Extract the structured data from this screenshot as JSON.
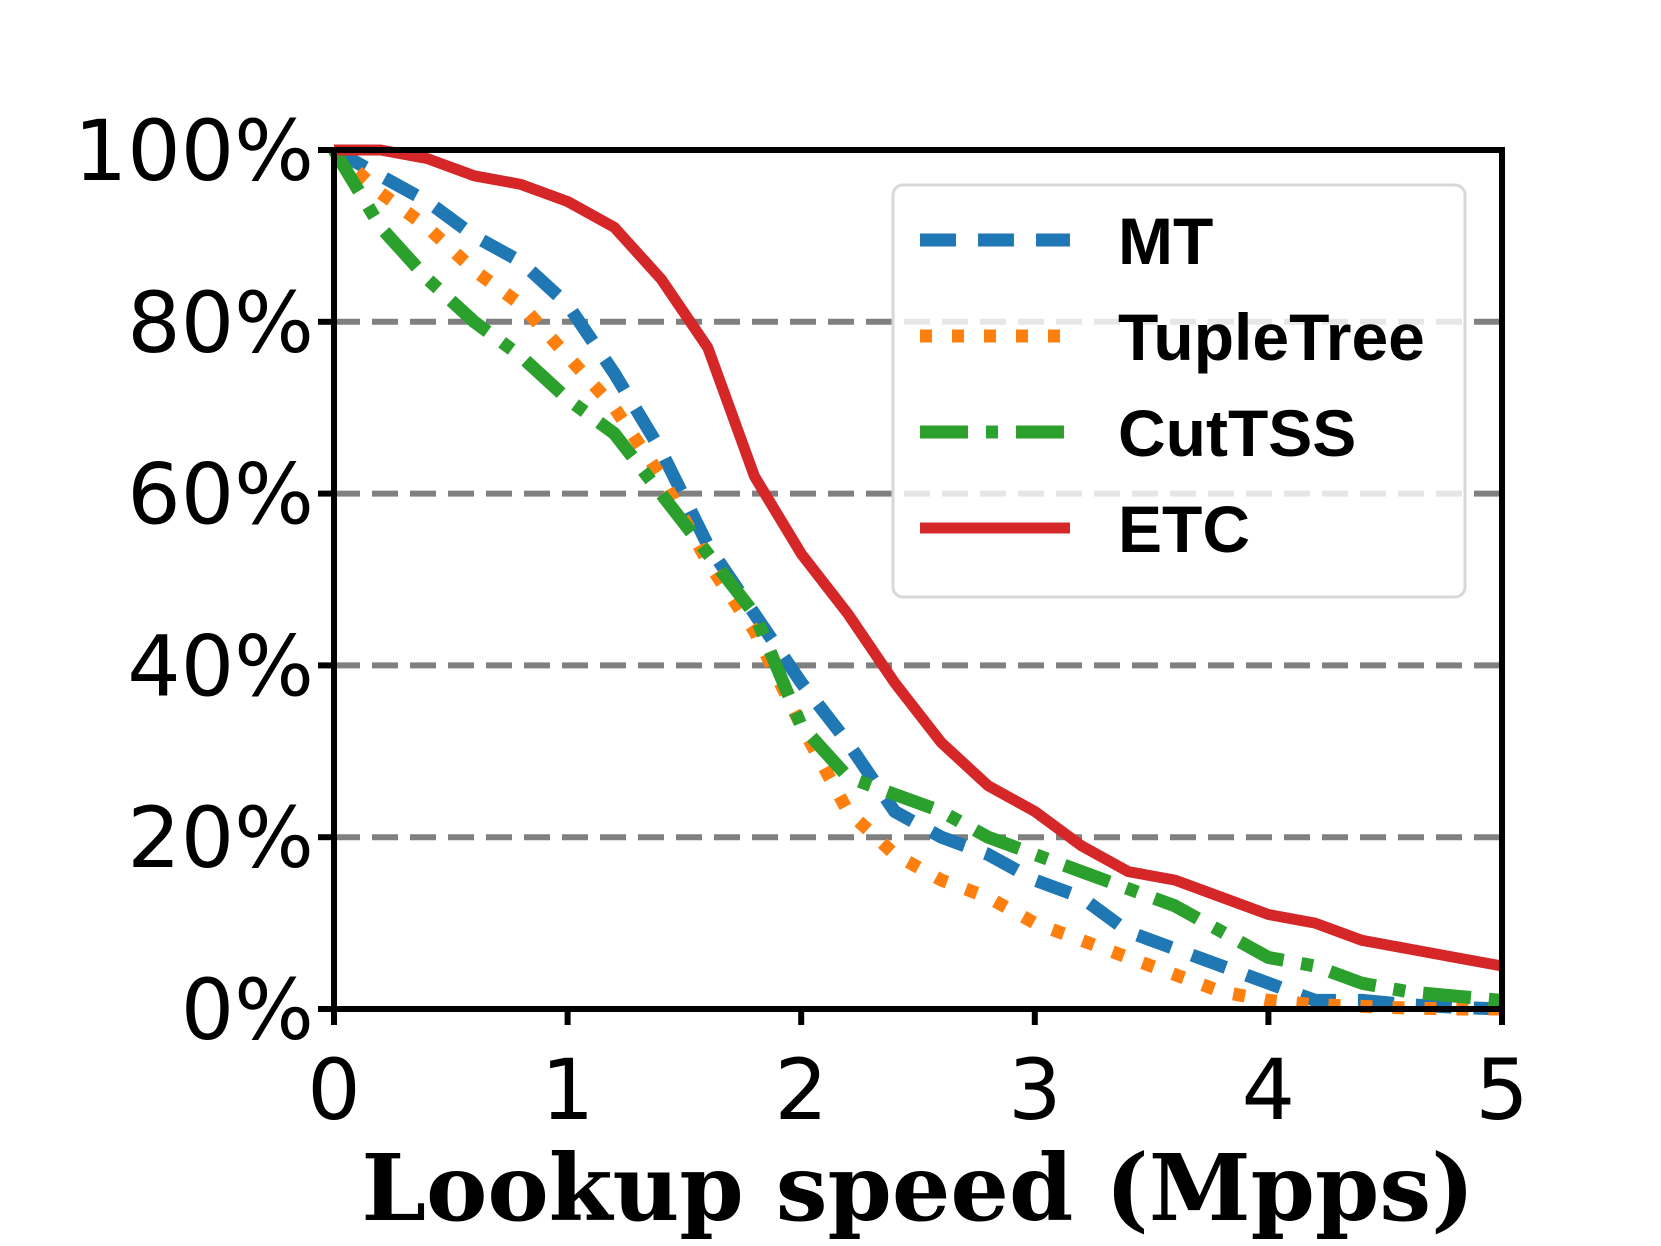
{
  "chart_data": {
    "type": "line",
    "title": "",
    "xlabel": "Lookup speed (Mpps)",
    "ylabel": "",
    "xlim": [
      0,
      5
    ],
    "ylim": [
      0,
      100
    ],
    "xticks": [
      0,
      1,
      2,
      3,
      4,
      5
    ],
    "xtick_labels": [
      "0",
      "1",
      "2",
      "3",
      "4",
      "5"
    ],
    "yticks": [
      0,
      20,
      40,
      60,
      80,
      100
    ],
    "ytick_labels": [
      "0%",
      "20%",
      "40%",
      "60%",
      "80%",
      "100%"
    ],
    "grid": "horizontal dashed at 20%, 40%, 60%, 80%",
    "legend_position": "top-right",
    "series": [
      {
        "name": "MT",
        "color": "#1f77b4",
        "style": "dashed",
        "x": [
          0,
          0.2,
          0.4,
          0.6,
          0.8,
          1.0,
          1.2,
          1.4,
          1.6,
          1.8,
          2.0,
          2.2,
          2.4,
          2.6,
          2.8,
          3.0,
          3.2,
          3.4,
          3.6,
          3.8,
          4.0,
          4.2,
          4.4,
          4.6,
          4.8,
          5.0
        ],
        "values": [
          100,
          97,
          94,
          90,
          87,
          82,
          74,
          65,
          54,
          46,
          38,
          31,
          23,
          20,
          18,
          15,
          13,
          9,
          7,
          5,
          3,
          1,
          1,
          0.5,
          0.2,
          0
        ]
      },
      {
        "name": "TupleTree",
        "color": "#ff7f0e",
        "style": "dotted",
        "x": [
          0,
          0.2,
          0.4,
          0.6,
          0.8,
          1.0,
          1.2,
          1.4,
          1.6,
          1.8,
          2.0,
          2.2,
          2.4,
          2.6,
          2.8,
          3.0,
          3.2,
          3.4,
          3.6,
          3.8,
          4.0,
          4.2,
          4.4,
          4.6,
          4.8,
          5.0
        ],
        "values": [
          100,
          95,
          91,
          86,
          82,
          76,
          70,
          62,
          52,
          44,
          33,
          23,
          18,
          15,
          13,
          10,
          8,
          6,
          4,
          2,
          1,
          0.5,
          0.3,
          0.1,
          0,
          0
        ]
      },
      {
        "name": "CutTSS",
        "color": "#2ca02c",
        "style": "dashdot",
        "x": [
          0,
          0.2,
          0.4,
          0.6,
          0.8,
          1.0,
          1.2,
          1.4,
          1.6,
          1.8,
          2.0,
          2.2,
          2.4,
          2.6,
          2.8,
          3.0,
          3.2,
          3.4,
          3.6,
          3.8,
          4.0,
          4.2,
          4.4,
          4.6,
          4.8,
          5.0
        ],
        "values": [
          100,
          91,
          85,
          80,
          76,
          71,
          67,
          60,
          53,
          46,
          33,
          27,
          25,
          23,
          20,
          18,
          16,
          14,
          12,
          9,
          6,
          5,
          3,
          2,
          1.5,
          1
        ]
      },
      {
        "name": "ETC",
        "color": "#d62728",
        "style": "solid",
        "x": [
          0,
          0.2,
          0.4,
          0.6,
          0.8,
          1.0,
          1.2,
          1.4,
          1.6,
          1.8,
          2.0,
          2.2,
          2.4,
          2.6,
          2.8,
          3.0,
          3.2,
          3.4,
          3.6,
          3.8,
          4.0,
          4.2,
          4.4,
          4.6,
          4.8,
          5.0
        ],
        "values": [
          100,
          100,
          99,
          97,
          96,
          94,
          91,
          85,
          77,
          62,
          53,
          46,
          38,
          31,
          26,
          23,
          19,
          16,
          15,
          13,
          11,
          10,
          8,
          7,
          6,
          5
        ]
      }
    ]
  }
}
